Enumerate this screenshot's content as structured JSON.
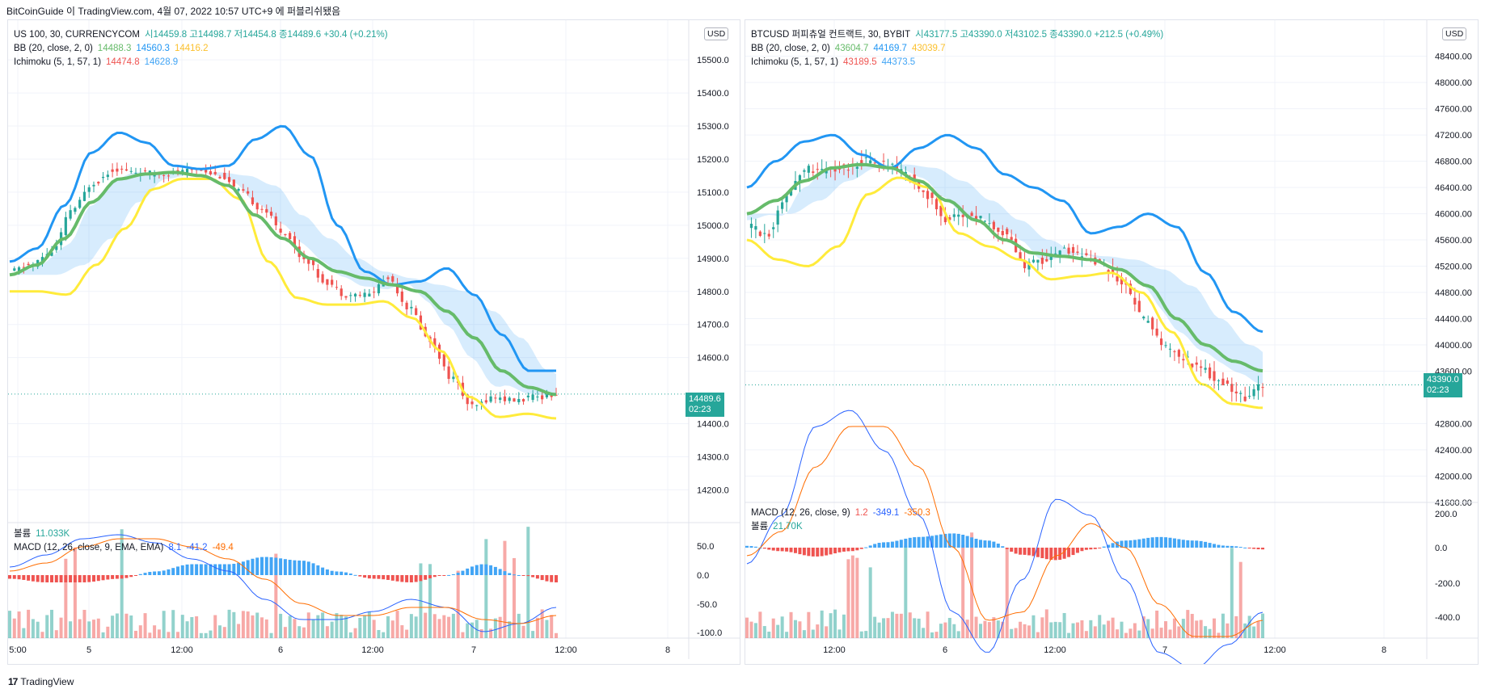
{
  "caption": "BitCoinGuide 이 TradingView.com, 4월 07, 2022 10:57 UTC+9 에 퍼블리쉬됐음",
  "footer": "TradingView",
  "colors": {
    "up": "#26a69a",
    "down": "#ef5350",
    "bb_upper": "#2196f3",
    "bb_mid": "#66bb6a",
    "bb_lower": "#ffeb3b",
    "ich_red": "#ef5350",
    "ich_blue": "#42a5f5",
    "macd": "#2962ff",
    "signal": "#ff6d00",
    "cloud_red": "rgba(239,83,80,0.22)",
    "cloud_blue": "rgba(33,150,243,0.22)"
  },
  "panels": {
    "left": {
      "legend": {
        "line1": "US 100, 30, CURRENCYCOM",
        "ohlc": "시14459.8 고14498.7 저14454.8 종14489.6 +30.4 (+0.21%)",
        "bb_label": "BB (20, close, 2, 0)",
        "bb_v1": "14488.3",
        "bb_v2": "14560.3",
        "bb_v3": "14416.2",
        "ich_label": "Ichimoku (5, 1, 57, 1)",
        "ich_v1": "14474.8",
        "ich_v2": "14628.9",
        "vol_label": "볼륨",
        "vol_val": "11.033K",
        "macd_label": "MACD (12, 26, close, 9, EMA, EMA)",
        "macd_v1": "8.1",
        "macd_v2": "-41.2",
        "macd_v3": "-49.4"
      },
      "currency": "USD",
      "last_price": "14489.6",
      "countdown": "02:23"
    },
    "right": {
      "legend": {
        "line1": "BTCUSD 퍼피츄얼 컨트랙트, 30, BYBIT",
        "ohlc": "시43177.5 고43390.0 저43102.5 종43390.0 +212.5 (+0.49%)",
        "bb_label": "BB (20, close, 2, 0)",
        "bb_v1": "43604.7",
        "bb_v2": "44169.7",
        "bb_v3": "43039.7",
        "ich_label": "Ichimoku (5, 1, 57, 1)",
        "ich_v1": "43189.5",
        "ich_v2": "44373.5",
        "macd_label": "MACD (12, 26, close, 9)",
        "macd_v1": "1.2",
        "macd_v2": "-349.1",
        "macd_v3": "-350.3",
        "vol_label": "볼륨",
        "vol_val": "21.70K"
      },
      "currency": "USD",
      "last_price": "43390.0",
      "countdown": "02:23"
    }
  },
  "chart_data": [
    {
      "type": "candlestick",
      "title": "US 100, 30, CURRENCYCOM",
      "ylim": [
        14140,
        15620
      ],
      "y_ticks": [
        "15500.0",
        "15400.0",
        "15300.0",
        "15200.0",
        "15100.0",
        "15000.0",
        "14900.0",
        "14800.0",
        "14700.0",
        "14600.0",
        "14400.0",
        "14300.0",
        "14200.0"
      ],
      "x_ticks": [
        "5:00",
        "5",
        "12:00",
        "6",
        "12:00",
        "7",
        "12:00",
        "8"
      ],
      "indicator_ticks": [
        "50.0",
        "0.0",
        "-50.0",
        "-100.0"
      ],
      "close_points": [
        14860,
        14880,
        14920,
        15050,
        15130,
        15170,
        15160,
        15155,
        15160,
        15170,
        15150,
        15100,
        15050,
        14980,
        14900,
        14830,
        14790,
        14790,
        14840,
        14750,
        14650,
        14540,
        14450,
        14480,
        14470,
        14480,
        14490
      ],
      "bb_upper": [
        14890,
        14930,
        15060,
        15220,
        15280,
        15250,
        15180,
        15170,
        15180,
        15260,
        15300,
        15210,
        15000,
        14860,
        14820,
        14830,
        14870,
        14790,
        14670,
        14560,
        14560
      ],
      "bb_mid": [
        14850,
        14880,
        14960,
        15070,
        15140,
        15155,
        15160,
        15150,
        15120,
        15030,
        14960,
        14900,
        14860,
        14840,
        14820,
        14800,
        14740,
        14660,
        14560,
        14510,
        14488
      ],
      "bb_lower": [
        14800,
        14800,
        14790,
        14880,
        14990,
        15110,
        15140,
        15140,
        15080,
        14890,
        14780,
        14760,
        14760,
        14770,
        14720,
        14620,
        14480,
        14420,
        14430,
        14416
      ]
    },
    {
      "type": "candlestick",
      "title": "BTCUSD 퍼피츄얼 컨트랙트, 30, BYBIT",
      "ylim": [
        41500,
        48950
      ],
      "y_ticks": [
        "48400.00",
        "48000.00",
        "47600.00",
        "47200.00",
        "46800.00",
        "46400.00",
        "46000.00",
        "45600.00",
        "45200.00",
        "44800.00",
        "44400.00",
        "44000.00",
        "43600.00",
        "42800.00",
        "42400.00",
        "42000.00",
        "41600.00"
      ],
      "x_ticks": [
        "12:00",
        "6",
        "12:00",
        "7",
        "12:00",
        "8"
      ],
      "indicator_ticks": [
        "200.0",
        "0.0",
        "-200.0",
        "-400.0"
      ],
      "close_points": [
        45800,
        45700,
        46300,
        46700,
        46650,
        46700,
        46800,
        46750,
        46600,
        46300,
        45900,
        46000,
        45900,
        45700,
        45200,
        45300,
        45450,
        45350,
        45200,
        44900,
        44400,
        44000,
        43800,
        43600,
        43400,
        43200,
        43390
      ],
      "bb_upper": [
        46400,
        46800,
        47100,
        47200,
        46900,
        46700,
        47000,
        47200,
        47000,
        46600,
        46400,
        46200,
        45700,
        45800,
        46000,
        45800,
        45100,
        44500,
        44200
      ],
      "bb_mid": [
        46000,
        46200,
        46500,
        46700,
        46750,
        46700,
        46500,
        46200,
        45900,
        45600,
        45400,
        45350,
        45300,
        45150,
        44900,
        44400,
        44000,
        43750,
        43605
      ],
      "bb_lower": [
        45600,
        45300,
        45200,
        45500,
        46300,
        46550,
        46400,
        45700,
        45500,
        45300,
        45000,
        45050,
        45100,
        44800,
        44200,
        43400,
        43100,
        43040
      ]
    }
  ]
}
